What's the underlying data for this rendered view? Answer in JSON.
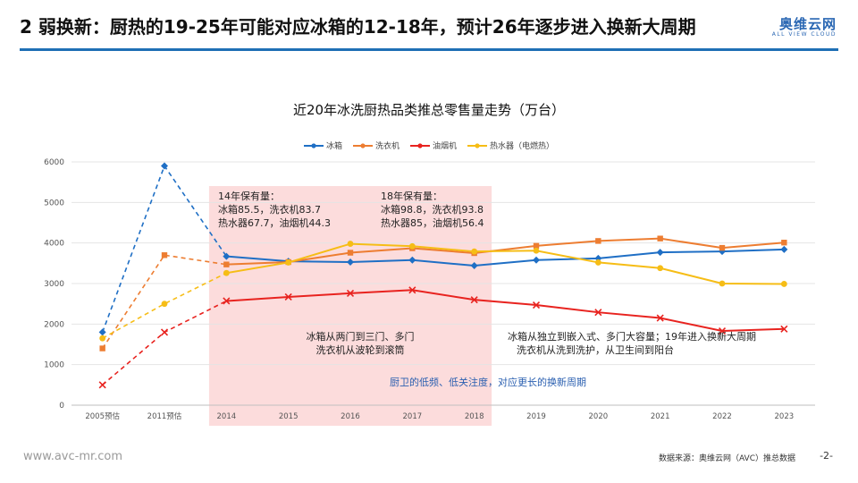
{
  "slide": {
    "title": "2 弱换新：厨热的19-25年可能对应冰箱的12-18年，预计26年逐步进入换新大周期",
    "logo_text": "奥维云网",
    "logo_sub": "ALL VIEW CLOUD",
    "footer_url": "www.avc-mr.com",
    "footer_source": "数据来源：奥维云网（AVC）推总数据",
    "page_number": "-2-",
    "colors": {
      "accent": "#1f6fb5",
      "highlight_fill": "#fbd6d6"
    }
  },
  "annotations": {
    "box2014": [
      "14年保有量：",
      "冰箱85.5，洗衣机83.7",
      "热水器67.7，油烟机44.3"
    ],
    "box2018": [
      "18年保有量：",
      "冰箱98.8，洗衣机93.8",
      "热水器85，油烟机56.4"
    ],
    "mid_note": [
      "冰箱从两门到三门、多门",
      "洗衣机从波轮到滚筒"
    ],
    "right_note": [
      "冰箱从独立到嵌入式、多门大容量；19年进入换新大周期",
      "洗衣机从洗到洗护，从卫生间到阳台"
    ],
    "blue_note": "厨卫的低频、低关注度，对应更长的换新周期"
  },
  "chart_data": {
    "type": "line",
    "title": "近20年冰洗厨热品类推总零售量走势（万台）",
    "categories": [
      "2005预估",
      "2011预估",
      "2014",
      "2015",
      "2016",
      "2017",
      "2018",
      "2019",
      "2020",
      "2021",
      "2022",
      "2023"
    ],
    "ylim": [
      0,
      6000
    ],
    "yticks": [
      "0",
      "1000",
      "2000",
      "3000",
      "4000",
      "5000",
      "6000"
    ],
    "grid": true,
    "legend_position": "top",
    "highlight_range": [
      "2014",
      "2018"
    ],
    "series": [
      {
        "name": "冰箱",
        "color": "#1f6fc5",
        "marker": "diamond",
        "dash_until": 2,
        "values": [
          1800,
          5900,
          3670,
          3550,
          3530,
          3580,
          3440,
          3580,
          3620,
          3770,
          3790,
          3840
        ]
      },
      {
        "name": "洗衣机",
        "color": "#ed7d31",
        "marker": "square",
        "dash_until": 2,
        "values": [
          1400,
          3700,
          3470,
          3530,
          3760,
          3870,
          3750,
          3930,
          4050,
          4110,
          3880,
          4010
        ]
      },
      {
        "name": "油烟机",
        "color": "#e8231f",
        "marker": "x",
        "dash_until": 2,
        "values": [
          500,
          1800,
          2570,
          2670,
          2760,
          2840,
          2600,
          2470,
          2290,
          2150,
          1830,
          1880
        ]
      },
      {
        "name": "热水器（电燃热）",
        "color": "#f6bd16",
        "marker": "circle",
        "dash_until": 2,
        "values": [
          1650,
          2500,
          3260,
          3520,
          3980,
          3920,
          3790,
          3810,
          3520,
          3380,
          3000,
          2990
        ]
      }
    ]
  }
}
